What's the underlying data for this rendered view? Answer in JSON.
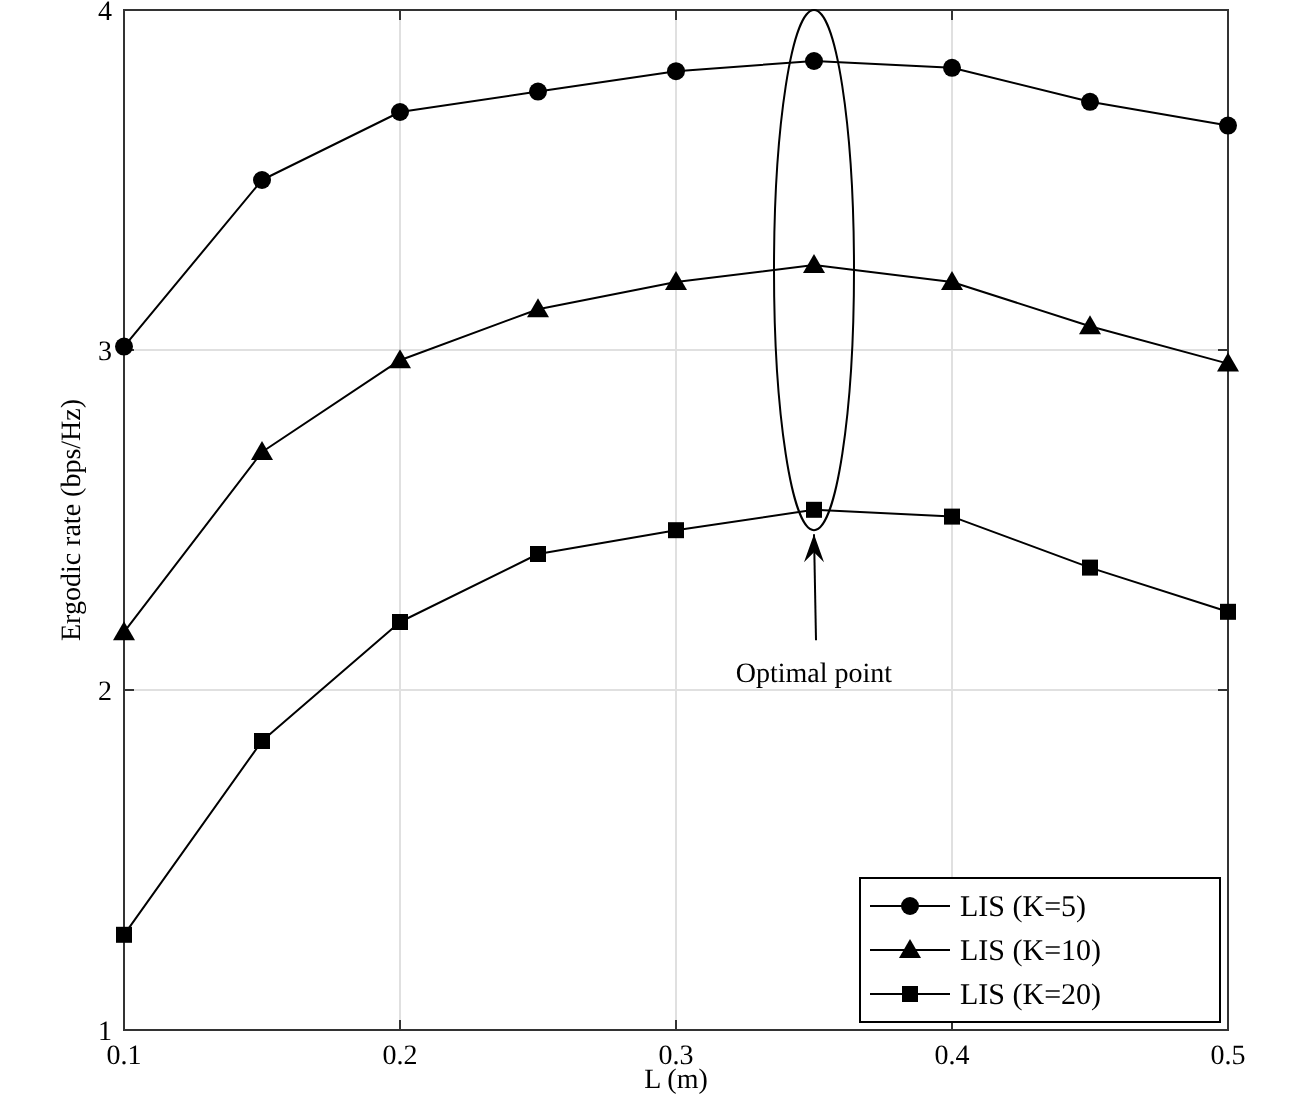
{
  "chart_data": {
    "type": "line",
    "xlabel": "L (m)",
    "ylabel": "Ergodic rate (bps/Hz)",
    "x": [
      0.1,
      0.15,
      0.2,
      0.25,
      0.3,
      0.35,
      0.4,
      0.45,
      0.5
    ],
    "series": [
      {
        "name": "LIS (K=5)",
        "color": "#000000",
        "marker": "circle",
        "values": [
          3.01,
          3.5,
          3.7,
          3.76,
          3.82,
          3.85,
          3.83,
          3.73,
          3.66
        ]
      },
      {
        "name": "LIS (K=10)",
        "color": "#000000",
        "marker": "triangle",
        "values": [
          2.17,
          2.7,
          2.97,
          3.12,
          3.2,
          3.25,
          3.2,
          3.07,
          2.96
        ]
      },
      {
        "name": "LIS (K=20)",
        "color": "#000000",
        "marker": "square",
        "values": [
          1.28,
          1.85,
          2.2,
          2.4,
          2.47,
          2.53,
          2.51,
          2.36,
          2.23
        ]
      }
    ],
    "xlim": [
      0.1,
      0.5
    ],
    "xticks": [
      0.1,
      0.2,
      0.3,
      0.4,
      0.5
    ],
    "ylim": [
      1,
      4
    ],
    "yticks": [
      1,
      2,
      3,
      4
    ],
    "grid": true,
    "legend": "bottom right",
    "line_style": "solid",
    "annotations": [
      "Optimal point"
    ]
  }
}
